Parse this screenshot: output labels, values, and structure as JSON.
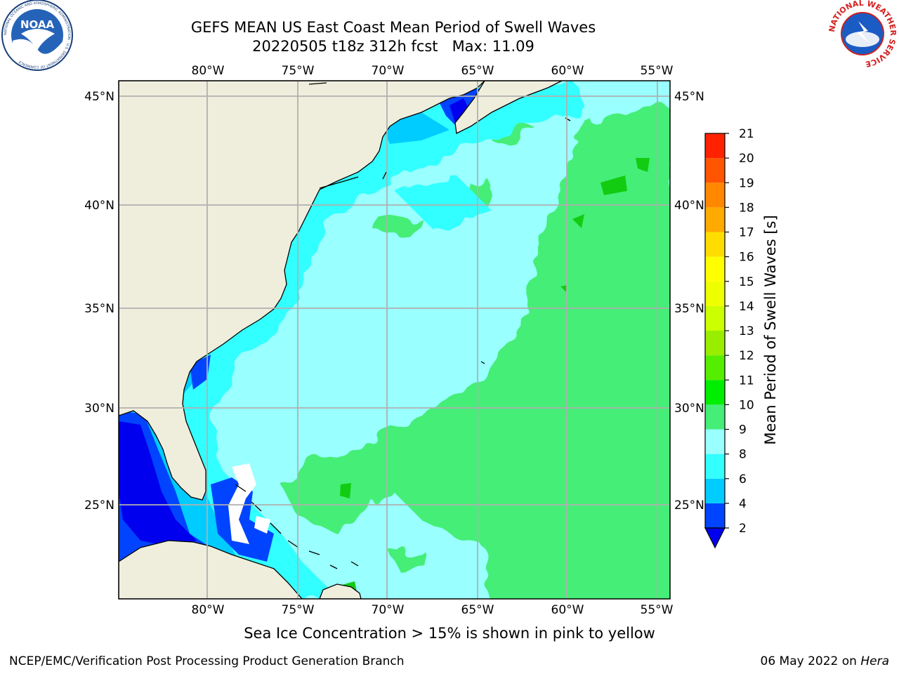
{
  "header": {
    "title_line1": "GEFS MEAN US East Coast Mean Period of Swell Waves",
    "title_line2": "20220505 t18z 312h fcst   Max: 11.09"
  },
  "logos": {
    "left": {
      "name": "noaa-logo",
      "text": "NOAA",
      "ring_text": "NATIONAL OCEANIC AND ATMOSPHERIC ADMINISTRATION · U.S. DEPARTMENT OF COMMERCE"
    },
    "right": {
      "name": "nws-logo",
      "ring_text": "NATIONAL WEATHER SERVICE"
    }
  },
  "map": {
    "lon_labels": [
      "80°W",
      "75°W",
      "70°W",
      "65°W",
      "60°W",
      "55°W"
    ],
    "lat_labels": [
      "45°N",
      "40°N",
      "35°N",
      "30°N",
      "25°N"
    ],
    "colors": {
      "land": "#efeedd",
      "swell_2_4": "#0044ff",
      "swell_4_6": "#00ccff",
      "swell_6_8": "#33ffff",
      "swell_8_9": "#99ffff",
      "swell_9_10": "#44ee77",
      "swell_10_11": "#11cc11",
      "grid": "#b0b0b0"
    }
  },
  "colorbar": {
    "label": "Mean Period of Swell Waves [s]",
    "ticks": [
      "2",
      "4",
      "6",
      "8",
      "9",
      "10",
      "11",
      "12",
      "13",
      "14",
      "15",
      "16",
      "17",
      "18",
      "19",
      "20",
      "21"
    ],
    "colors": [
      "#0044ff",
      "#00ccff",
      "#33ffff",
      "#99ffff",
      "#44ee77",
      "#00ee00",
      "#55ee00",
      "#99ee00",
      "#ccff00",
      "#eeff00",
      "#ffff00",
      "#ffdd00",
      "#ffaa00",
      "#ff8800",
      "#ff5500",
      "#ff2200"
    ],
    "under_color": "#0000ee"
  },
  "annotation": {
    "subtitle": "Sea Ice Concentration > 15% is shown in pink to yellow"
  },
  "footer": {
    "left": "NCEP/EMC/Verification Post Processing Product Generation Branch",
    "date": "06 May 2022 on",
    "machine": "Hera"
  }
}
